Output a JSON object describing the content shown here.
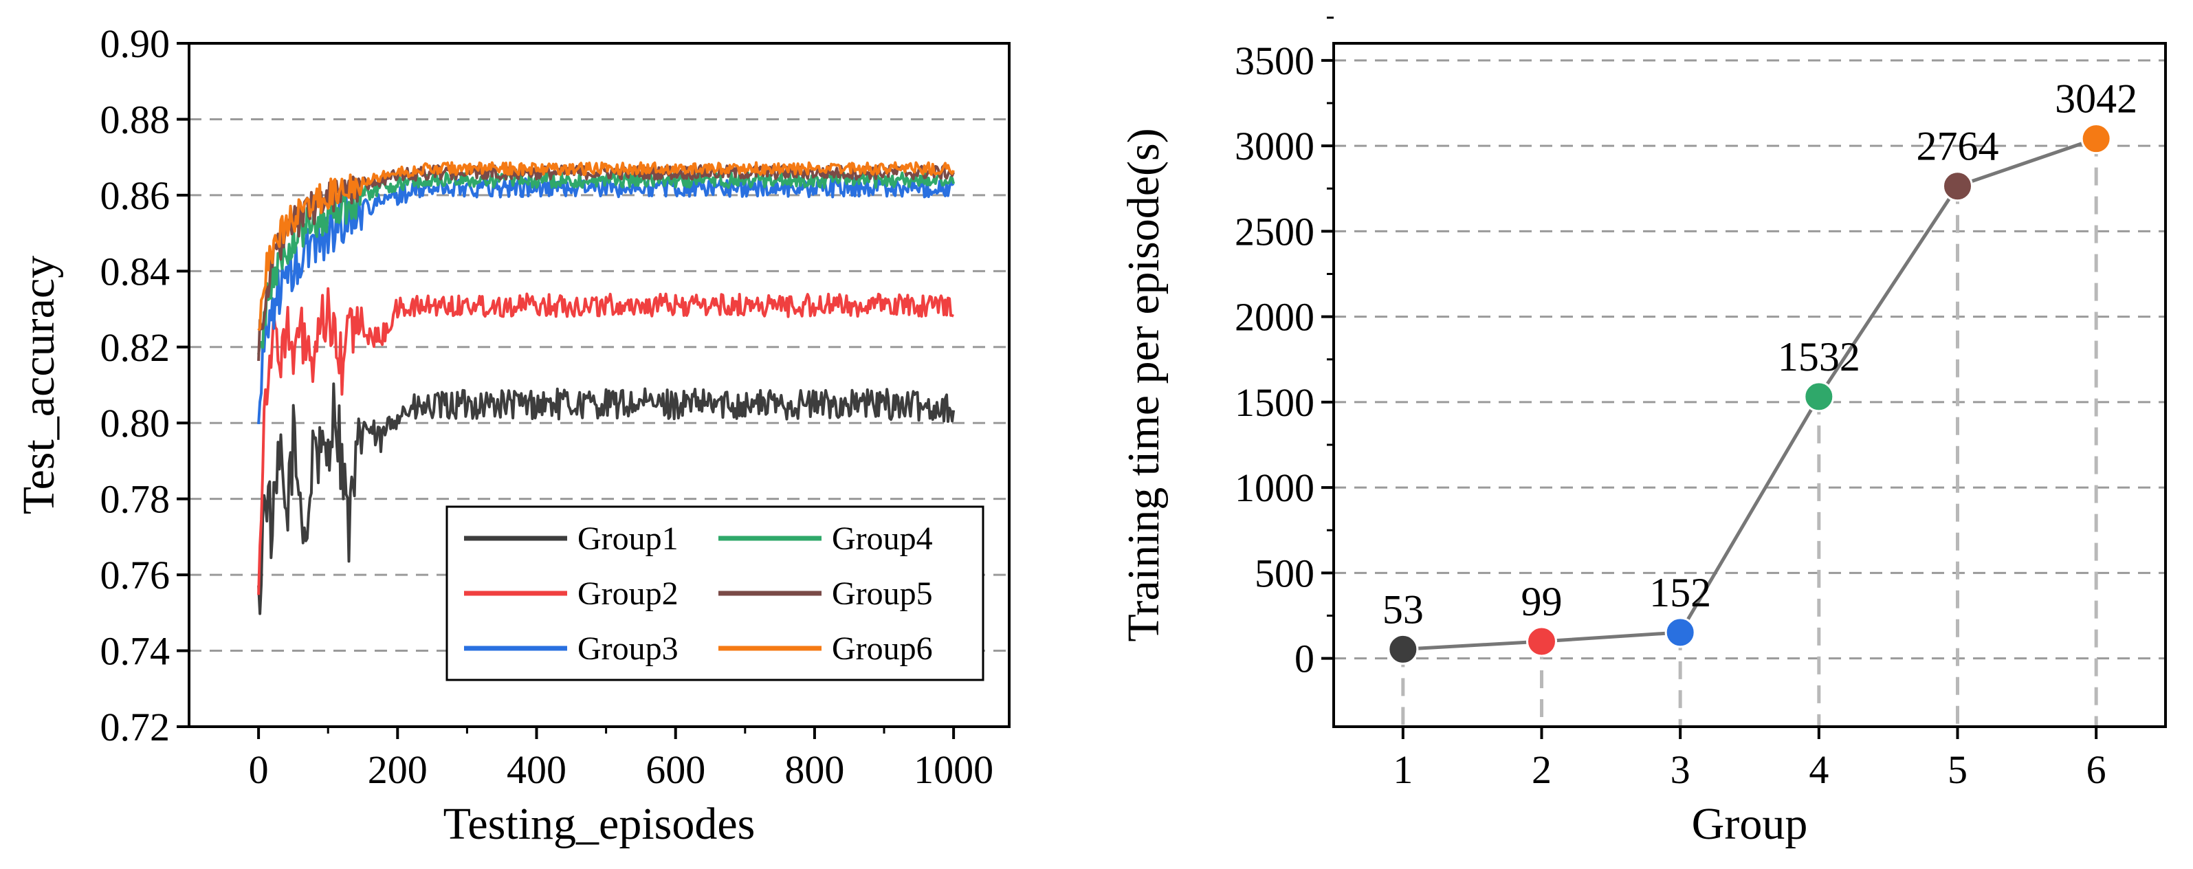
{
  "chart_data": [
    {
      "type": "line",
      "xlabel": "Testing_episodes",
      "ylabel": "Test_accuracy",
      "xlim": [
        -100,
        1080
      ],
      "ylim": [
        0.72,
        0.9
      ],
      "xticks": [
        0,
        200,
        400,
        600,
        800,
        1000
      ],
      "xtick_labels": [
        "0",
        "200",
        "400",
        "600",
        "800",
        "1000"
      ],
      "yticks": [
        0.72,
        0.74,
        0.76,
        0.78,
        0.8,
        0.82,
        0.84,
        0.86,
        0.88,
        0.9
      ],
      "ytick_labels": [
        "0.72",
        "0.74",
        "0.76",
        "0.78",
        "0.80",
        "0.82",
        "0.84",
        "0.86",
        "0.88",
        "0.90"
      ],
      "grid": "horizontal-dashed",
      "legend_position": "bottom-right",
      "series": [
        {
          "name": "Group1",
          "color": "#3d3d3d",
          "x": [
            0,
            10,
            20,
            30,
            40,
            50,
            60,
            70,
            80,
            90,
            100,
            110,
            120,
            130,
            150,
            175,
            200,
            250,
            300,
            400,
            500,
            600,
            700,
            800,
            900,
            1000
          ],
          "values": [
            0.75,
            0.785,
            0.77,
            0.79,
            0.775,
            0.795,
            0.78,
            0.77,
            0.798,
            0.788,
            0.795,
            0.805,
            0.79,
            0.772,
            0.8,
            0.795,
            0.803,
            0.804,
            0.805,
            0.805,
            0.805,
            0.805,
            0.805,
            0.805,
            0.805,
            0.804
          ],
          "noise": 0.004
        },
        {
          "name": "Group2",
          "color": "#f04040",
          "x": [
            0,
            10,
            20,
            30,
            40,
            50,
            60,
            70,
            80,
            90,
            100,
            110,
            120,
            130,
            150,
            175,
            200,
            250,
            300,
            400,
            500,
            600,
            700,
            800,
            900,
            1000
          ],
          "values": [
            0.76,
            0.81,
            0.822,
            0.818,
            0.826,
            0.815,
            0.824,
            0.82,
            0.812,
            0.825,
            0.83,
            0.82,
            0.815,
            0.826,
            0.824,
            0.822,
            0.83,
            0.831,
            0.831,
            0.831,
            0.831,
            0.831,
            0.831,
            0.831,
            0.831,
            0.831
          ],
          "noise": 0.003
        },
        {
          "name": "Group3",
          "color": "#2970e0",
          "x": [
            0,
            10,
            20,
            30,
            40,
            50,
            60,
            70,
            80,
            90,
            100,
            110,
            120,
            130,
            150,
            175,
            200,
            250,
            300,
            400,
            500,
            600,
            700,
            800,
            900,
            1000
          ],
          "values": [
            0.8,
            0.825,
            0.83,
            0.835,
            0.838,
            0.84,
            0.842,
            0.845,
            0.848,
            0.849,
            0.85,
            0.852,
            0.853,
            0.855,
            0.857,
            0.858,
            0.86,
            0.862,
            0.862,
            0.862,
            0.862,
            0.862,
            0.862,
            0.862,
            0.862,
            0.862
          ],
          "noise": 0.0025
        },
        {
          "name": "Group4",
          "color": "#2fa86a",
          "x": [
            0,
            10,
            20,
            30,
            40,
            50,
            60,
            70,
            80,
            90,
            100,
            110,
            120,
            130,
            150,
            175,
            200,
            250,
            300,
            400,
            500,
            600,
            700,
            800,
            900,
            1000
          ],
          "values": [
            0.815,
            0.83,
            0.838,
            0.842,
            0.846,
            0.848,
            0.85,
            0.852,
            0.853,
            0.854,
            0.855,
            0.856,
            0.857,
            0.858,
            0.86,
            0.862,
            0.863,
            0.864,
            0.864,
            0.864,
            0.864,
            0.864,
            0.864,
            0.864,
            0.864,
            0.864
          ],
          "noise": 0.002
        },
        {
          "name": "Group5",
          "color": "#7a4a47",
          "x": [
            0,
            10,
            20,
            30,
            40,
            50,
            60,
            70,
            80,
            90,
            100,
            110,
            120,
            130,
            150,
            175,
            200,
            250,
            300,
            400,
            500,
            600,
            700,
            800,
            900,
            1000
          ],
          "values": [
            0.82,
            0.835,
            0.842,
            0.846,
            0.85,
            0.852,
            0.854,
            0.856,
            0.857,
            0.858,
            0.859,
            0.86,
            0.861,
            0.862,
            0.863,
            0.864,
            0.865,
            0.866,
            0.866,
            0.866,
            0.866,
            0.866,
            0.866,
            0.866,
            0.866,
            0.866
          ],
          "noise": 0.0018
        },
        {
          "name": "Group6",
          "color": "#f57a14",
          "x": [
            0,
            10,
            20,
            30,
            40,
            50,
            60,
            70,
            80,
            90,
            100,
            110,
            120,
            130,
            150,
            175,
            200,
            250,
            300,
            400,
            500,
            600,
            700,
            800,
            900,
            1000
          ],
          "values": [
            0.825,
            0.84,
            0.846,
            0.85,
            0.852,
            0.854,
            0.856,
            0.857,
            0.858,
            0.859,
            0.86,
            0.861,
            0.862,
            0.863,
            0.864,
            0.865,
            0.866,
            0.867,
            0.867,
            0.867,
            0.867,
            0.867,
            0.867,
            0.867,
            0.867,
            0.867
          ],
          "noise": 0.0016
        }
      ]
    },
    {
      "type": "line",
      "xlabel": "Group",
      "ylabel": "Training time per episode(s)",
      "xlim": [
        0.5,
        6.5
      ],
      "ylim": [
        -400,
        3600
      ],
      "xticks": [
        1,
        2,
        3,
        4,
        5,
        6
      ],
      "xtick_labels": [
        "1",
        "2",
        "3",
        "4",
        "5",
        "6"
      ],
      "yticks": [
        0,
        500,
        1000,
        1500,
        2000,
        2500,
        3000,
        3500
      ],
      "ytick_labels": [
        "0",
        "500",
        "1000",
        "1500",
        "2000",
        "2500",
        "3000",
        "3500"
      ],
      "grid": "horizontal-dashed",
      "line_color": "#777777",
      "categories": [
        "1",
        "2",
        "3",
        "4",
        "5",
        "6"
      ],
      "values": [
        53,
        99,
        152,
        1532,
        2764,
        3042
      ],
      "data_labels": [
        "53",
        "99",
        "152",
        "1532",
        "2764",
        "3042"
      ],
      "point_colors": [
        "#3d3d3d",
        "#f04040",
        "#2970e0",
        "#2fa86a",
        "#7a4a47",
        "#f57a14"
      ]
    }
  ]
}
